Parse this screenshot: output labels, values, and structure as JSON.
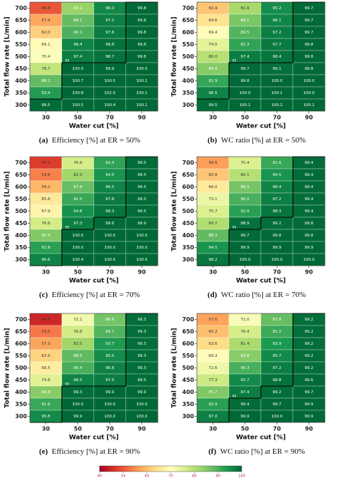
{
  "chart_data": [
    {
      "type": "heatmap",
      "caption_label": "(a)",
      "caption": "Efficiency [%] at ER = 50%",
      "xlabel": "Water cut [%]",
      "ylabel": "Total flow rate [L/min]",
      "x_categories": [
        30,
        50,
        70,
        90
      ],
      "y_categories": [
        700,
        650,
        600,
        550,
        500,
        450,
        400,
        350,
        300
      ],
      "contour_level": 99,
      "values": [
        [
          49.8,
          83.2,
          96.0,
          99.8
        ],
        [
          57.4,
          88.1,
          97.1,
          99.8
        ],
        [
          62.0,
          90.1,
          97.6,
          99.8
        ],
        [
          69.1,
          96.4,
          98.8,
          99.8
        ],
        [
          70.4,
          97.4,
          98.7,
          99.8
        ],
        [
          78.7,
          100.0,
          99.9,
          100.0
        ],
        [
          88.2,
          100.7,
          100.5,
          100.1
        ],
        [
          93.4,
          100.8,
          102.0,
          100.1
        ],
        [
          99.5,
          100.5,
          100.4,
          100.1
        ]
      ],
      "value_labels": [
        [
          "49.8",
          "83.2",
          "96.0",
          "99.8"
        ],
        [
          "57.4",
          "88.1",
          "97.1",
          "99.8"
        ],
        [
          "62.0",
          "90.1",
          "97.6",
          "99.8"
        ],
        [
          "69.1",
          "96.4",
          "98.8",
          "99.8"
        ],
        [
          "70.4",
          "97.4",
          "98.7",
          "99.8"
        ],
        [
          "78.7",
          "100.0",
          "99.9",
          "100.0"
        ],
        [
          "88.2",
          "100.7",
          "100.5",
          "100.1"
        ],
        [
          "93.4",
          "100.8",
          "102.0",
          "100.1"
        ],
        [
          "99.5",
          "100.5",
          "100.4",
          "100.1"
        ]
      ]
    },
    {
      "type": "heatmap",
      "caption_label": "(b)",
      "caption": "WC ratio [%] at ER = 50%",
      "xlabel": "Water cut [%]",
      "ylabel": "Total flow rate [L/min]",
      "x_categories": [
        30,
        50,
        70,
        90
      ],
      "y_categories": [
        700,
        650,
        600,
        550,
        500,
        450,
        400,
        350,
        300
      ],
      "contour_level": 99,
      "values": [
        [
          60.9,
          81.9,
          95.2,
          99.7
        ],
        [
          64.6,
          86.1,
          96.1,
          99.7
        ],
        [
          69.4,
          89.5,
          97.2,
          99.7
        ],
        [
          74.5,
          92.3,
          97.7,
          99.8
        ],
        [
          80.0,
          97.4,
          98.4,
          99.8
        ],
        [
          84.9,
          99.7,
          99.1,
          99.8
        ],
        [
          91.9,
          99.8,
          100.0,
          100.0
        ],
        [
          96.5,
          100.0,
          100.1,
          100.0
        ],
        [
          99.5,
          100.1,
          100.2,
          100.1
        ]
      ],
      "value_labels": [
        [
          "60.9",
          "81.9",
          "95.2",
          "99.7"
        ],
        [
          "64.6",
          "86.1",
          "96.1",
          "99.7"
        ],
        [
          "69.4",
          "89.5",
          "97.2",
          "99.7"
        ],
        [
          "74.5",
          "92.3",
          "97.7",
          "99.8"
        ],
        [
          "80.0",
          "97.4",
          "98.4",
          "99.8"
        ],
        [
          "84.9",
          "99.7",
          "99.1",
          "99.8"
        ],
        [
          "91.9",
          "99.8",
          "100.0",
          "100.0"
        ],
        [
          "96.5",
          "100.0",
          "100.1",
          "100.0"
        ],
        [
          "99.5",
          "100.1",
          "100.2",
          "100.1"
        ]
      ]
    },
    {
      "type": "heatmap",
      "caption_label": "(c)",
      "caption": "Efficiency [%] at ER = 70%",
      "xlabel": "Water cut [%]",
      "ylabel": "Total flow rate [L/min]",
      "x_categories": [
        30,
        50,
        70,
        90
      ],
      "y_categories": [
        700,
        650,
        600,
        550,
        500,
        450,
        400,
        350,
        300
      ],
      "contour_level": 99,
      "values": [
        [
          47.2,
          76.6,
          92.4,
          99.5
        ],
        [
          53.8,
          82.3,
          94.5,
          99.5
        ],
        [
          59.2,
          87.8,
          96.5,
          99.5
        ],
        [
          65.8,
          91.5,
          97.8,
          99.5
        ],
        [
          67.9,
          94.8,
          98.3,
          99.5
        ],
        [
          76.6,
          97.3,
          99.6,
          99.9
        ],
        [
          85.4,
          100.0,
          100.0,
          100.0
        ],
        [
          92.8,
          100.0,
          100.0,
          100.0
        ],
        [
          96.6,
          100.4,
          100.0,
          100.0
        ]
      ],
      "value_labels": [
        [
          "47.2",
          "76.6",
          "92.4",
          "99.5"
        ],
        [
          "53.8",
          "82.3",
          "94.5",
          "99.5"
        ],
        [
          "59.2",
          "87.8",
          "96.5",
          "99.5"
        ],
        [
          "65.8",
          "91.5",
          "97.8",
          "99.5"
        ],
        [
          "67.9",
          "94.8",
          "98.3",
          "99.5"
        ],
        [
          "76.6",
          "97.3",
          "99.6",
          "99.9"
        ],
        [
          "85.4",
          "100.0",
          "100.0",
          "100.0"
        ],
        [
          "92.8",
          "100.0",
          "100.0",
          "100.0"
        ],
        [
          "96.6",
          "100.4",
          "100.0",
          "100.0"
        ]
      ]
    },
    {
      "type": "heatmap",
      "caption_label": "(d)",
      "caption": "WC ratio [%] at ER = 70%",
      "xlabel": "Water cut [%]",
      "ylabel": "Total flow rate [L/min]",
      "x_categories": [
        30,
        50,
        70,
        90
      ],
      "y_categories": [
        700,
        650,
        600,
        550,
        500,
        450,
        400,
        350,
        300
      ],
      "contour_level": 99,
      "values": [
        [
          56.6,
          75.4,
          91.6,
          99.4
        ],
        [
          60.8,
          80.1,
          94.5,
          99.4
        ],
        [
          66.0,
          86.5,
          96.4,
          99.4
        ],
        [
          73.1,
          90.2,
          97.2,
          99.4
        ],
        [
          75.7,
          92.9,
          98.3,
          99.4
        ],
        [
          80.7,
          98.9,
          99.2,
          99.8
        ],
        [
          88.3,
          99.7,
          99.8,
          99.8
        ],
        [
          94.5,
          99.9,
          99.9,
          99.9
        ],
        [
          98.2,
          100.0,
          100.0,
          100.0
        ]
      ],
      "value_labels": [
        [
          "56.6",
          "75.4",
          "91.6",
          "99.4"
        ],
        [
          "60.8",
          "80.1",
          "94.5",
          "99.4"
        ],
        [
          "66.0",
          "86.5",
          "96.4",
          "99.4"
        ],
        [
          "73.1",
          "90.2",
          "97.2",
          "99.4"
        ],
        [
          "75.7",
          "92.9",
          "98.3",
          "99.4"
        ],
        [
          "80.7",
          "98.9",
          "99.2",
          "99.8"
        ],
        [
          "88.3",
          "99.7",
          "99.8",
          "99.8"
        ],
        [
          "94.5",
          "99.9",
          "99.9",
          "99.9"
        ],
        [
          "98.2",
          "100.0",
          "100.0",
          "100.0"
        ]
      ]
    },
    {
      "type": "heatmap",
      "caption_label": "(e)",
      "caption": "Efficiency [%] at ER = 90%",
      "xlabel": "Water cut [%]",
      "ylabel": "Total flow rate [L/min]",
      "x_categories": [
        30,
        50,
        70,
        90
      ],
      "y_categories": [
        700,
        650,
        600,
        550,
        500,
        450,
        400,
        350,
        300
      ],
      "contour_level": 99,
      "values": [
        [
          44.8,
          72.1,
          86.6,
          99.3
        ],
        [
          53.0,
          76.8,
          89.7,
          99.3
        ],
        [
          57.3,
          82.5,
          93.7,
          99.3
        ],
        [
          62.5,
          88.5,
          95.5,
          99.3
        ],
        [
          66.5,
          90.4,
          96.8,
          99.3
        ],
        [
          74.8,
          96.5,
          97.5,
          99.5
        ],
        [
          84.8,
          99.3,
          99.9,
          99.9
        ],
        [
          91.6,
          100.0,
          100.0,
          100.0
        ],
        [
          95.8,
          99.9,
          100.0,
          100.0
        ]
      ],
      "value_labels": [
        [
          "44.8",
          "72.1",
          "86.6",
          "99.3"
        ],
        [
          "53.0",
          "76.8",
          "89.7",
          "99.3"
        ],
        [
          "57.3",
          "82.5",
          "93.7",
          "99.3"
        ],
        [
          "62.5",
          "88.5",
          "95.5",
          "99.3"
        ],
        [
          "66.5",
          "90.4",
          "96.8",
          "99.3"
        ],
        [
          "74.8",
          "96.5",
          "97.5",
          "99.5"
        ],
        [
          "84.8",
          "99.3",
          "99.9",
          "99.9"
        ],
        [
          "91.6",
          "100.0",
          "100.0",
          "100.0"
        ],
        [
          "95.8",
          "99.9",
          "100.0",
          "100.0"
        ]
      ]
    },
    {
      "type": "heatmap",
      "caption_label": "(f)",
      "caption": "WC ratio [%] at ER = 90%",
      "xlabel": "Water cut [%]",
      "ylabel": "Total flow rate [L/min]",
      "x_categories": [
        30,
        50,
        70,
        90
      ],
      "y_categories": [
        700,
        650,
        600,
        550,
        500,
        450,
        400,
        350,
        300
      ],
      "contour_level": 99,
      "values": [
        [
          57.0,
          71.0,
          87.8,
          99.2
        ],
        [
          60.2,
          76.4,
          91.2,
          99.2
        ],
        [
          63.6,
          81.4,
          93.9,
          99.2
        ],
        [
          69.3,
          84.8,
          95.7,
          99.2
        ],
        [
          72.6,
          90.3,
          97.2,
          99.2
        ],
        [
          77.3,
          95.7,
          98.8,
          99.6
        ],
        [
          85.7,
          97.4,
          99.2,
          99.7
        ],
        [
          92.9,
          99.4,
          99.7,
          99.9
        ],
        [
          97.0,
          99.9,
          100.0,
          99.9
        ]
      ],
      "value_labels": [
        [
          "57.0",
          "71.0",
          "87.8",
          "99.2"
        ],
        [
          "60.2",
          "76.4",
          "91.2",
          "99.2"
        ],
        [
          "63.6",
          "81.4",
          "93.9",
          "99.2"
        ],
        [
          "69.3",
          "84.8",
          "95.7",
          "99.2"
        ],
        [
          "72.6",
          "90.3",
          "97.2",
          "99.2"
        ],
        [
          "77.3",
          "95.7",
          "98.8",
          "99.6"
        ],
        [
          "85.7",
          "97.4",
          "99.2",
          "99.7"
        ],
        [
          "92.9",
          "99.4",
          "99.7",
          "99.9"
        ],
        [
          "97.0",
          "99.9",
          "100.0",
          "99.9"
        ]
      ]
    }
  ],
  "colorbar": {
    "lim": [
      40,
      100
    ],
    "ticks": [
      40,
      50,
      60,
      70,
      80,
      90,
      100
    ]
  }
}
